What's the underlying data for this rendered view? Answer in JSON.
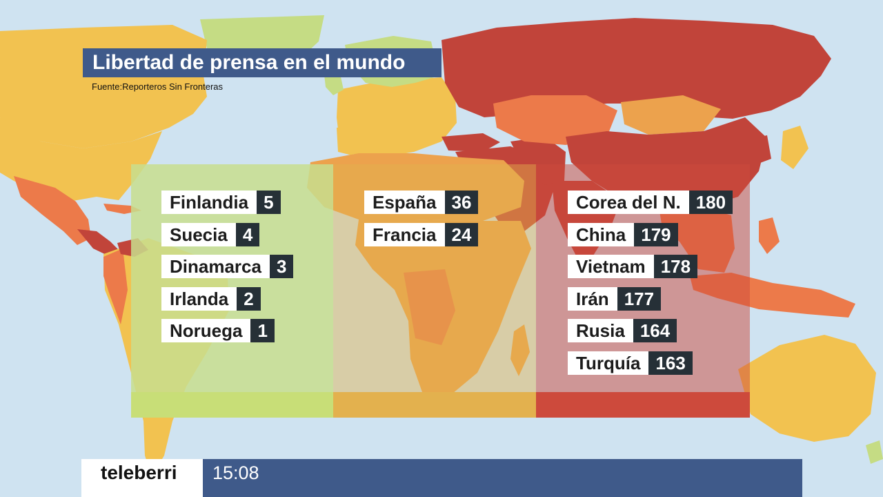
{
  "title": "Libertad de prensa en el mundo",
  "source": "Fuente:Reporteros Sin Fronteras",
  "colors": {
    "ocean": "#cfe3f1",
    "free": "#c5dc84",
    "satisfactory": "#f2c250",
    "problematic": "#eca24d",
    "difficult": "#ec7a4a",
    "very_serious": "#c1443a",
    "title_bg": "#3f5a8a",
    "panel_green": "#c8de8e",
    "panel_orange": "#e3b14e",
    "panel_red": "#cd4a3c"
  },
  "panels": {
    "green": {
      "items": [
        {
          "country": "Finlandia",
          "rank": "5"
        },
        {
          "country": "Suecia",
          "rank": "4"
        },
        {
          "country": "Dinamarca",
          "rank": "3"
        },
        {
          "country": "Irlanda",
          "rank": "2"
        },
        {
          "country": "Noruega",
          "rank": "1"
        }
      ]
    },
    "orange": {
      "items": [
        {
          "country": "España",
          "rank": "36"
        },
        {
          "country": "Francia",
          "rank": "24"
        }
      ]
    },
    "red": {
      "items": [
        {
          "country": "Corea del N.",
          "rank": "180"
        },
        {
          "country": "China",
          "rank": "179"
        },
        {
          "country": "Vietnam",
          "rank": "178"
        },
        {
          "country": "Irán",
          "rank": "177"
        },
        {
          "country": "Rusia",
          "rank": "164"
        },
        {
          "country": "Turquía",
          "rank": "163"
        }
      ]
    }
  },
  "footer": {
    "brand": "teleberri",
    "time": "15:08"
  }
}
